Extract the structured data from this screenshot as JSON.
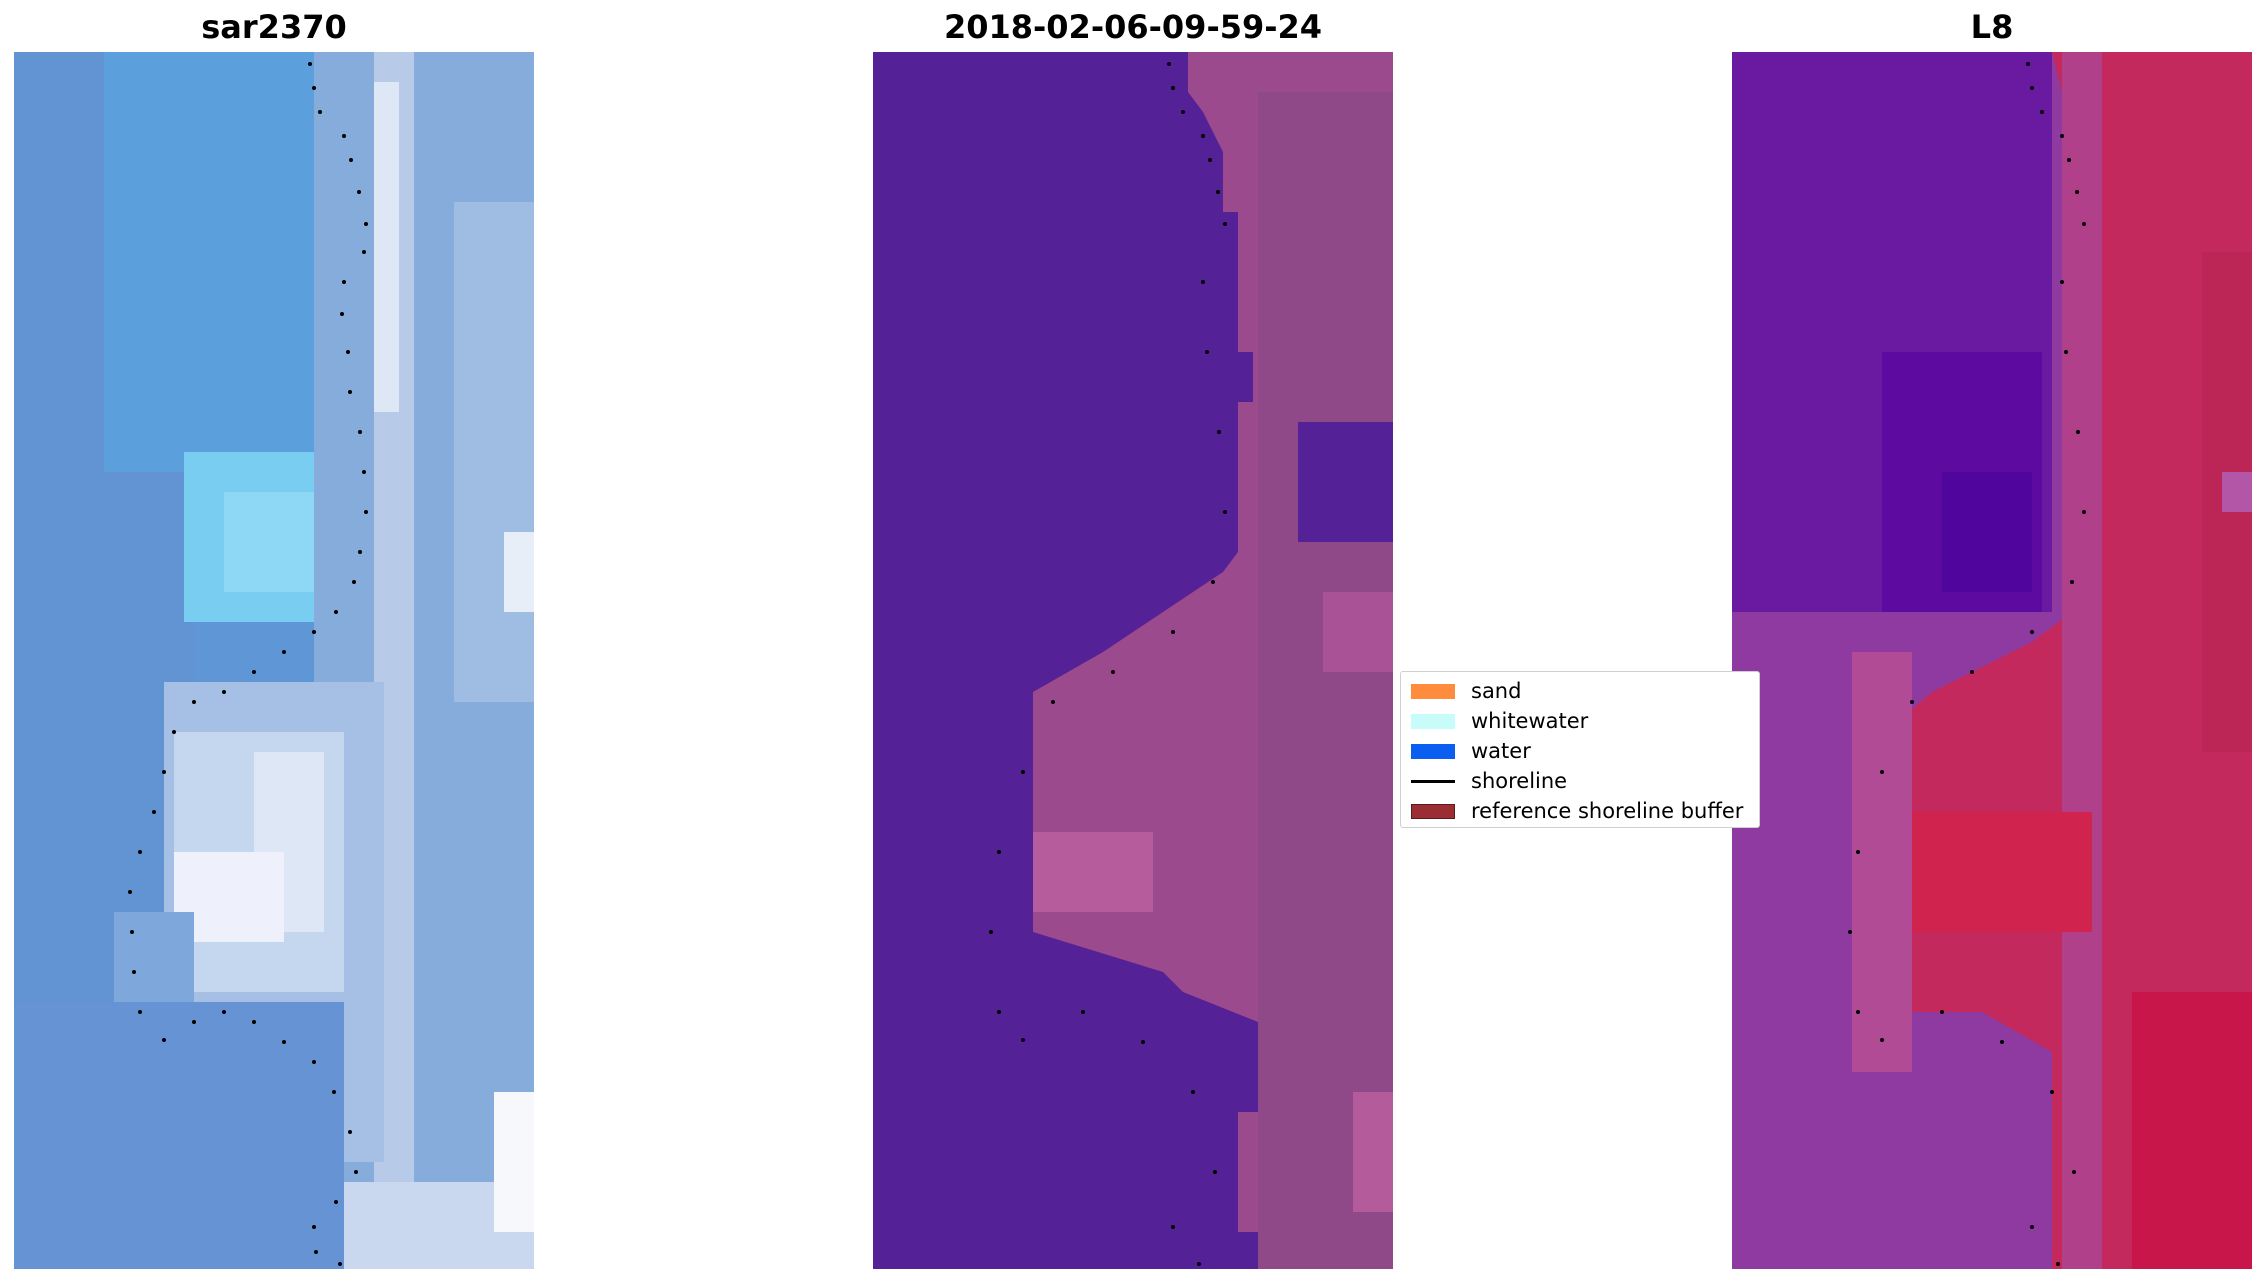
{
  "panels": {
    "sar": {
      "title": "sar2370"
    },
    "classified": {
      "title": "2018-02-06-09-59-24"
    },
    "l8": {
      "title": "L8"
    }
  },
  "legend": {
    "items": [
      {
        "label": "sand",
        "color": "#ff8b3d",
        "kind": "patch"
      },
      {
        "label": "whitewater",
        "color": "#c8fcfb",
        "kind": "patch"
      },
      {
        "label": "water",
        "color": "#0a5ef0",
        "kind": "patch"
      },
      {
        "label": "shoreline",
        "color": "#000000",
        "kind": "line"
      },
      {
        "label": "reference shoreline buffer",
        "color": "#9a2e33",
        "kind": "patch"
      }
    ]
  },
  "colors": {
    "sar_water": "#5b95d8",
    "sar_bright": "#dfe8f7",
    "classified_water": "#542196",
    "classified_land": "#9d4c8e",
    "l8_water": "#6a1aa0",
    "l8_land": "#c3295d"
  }
}
